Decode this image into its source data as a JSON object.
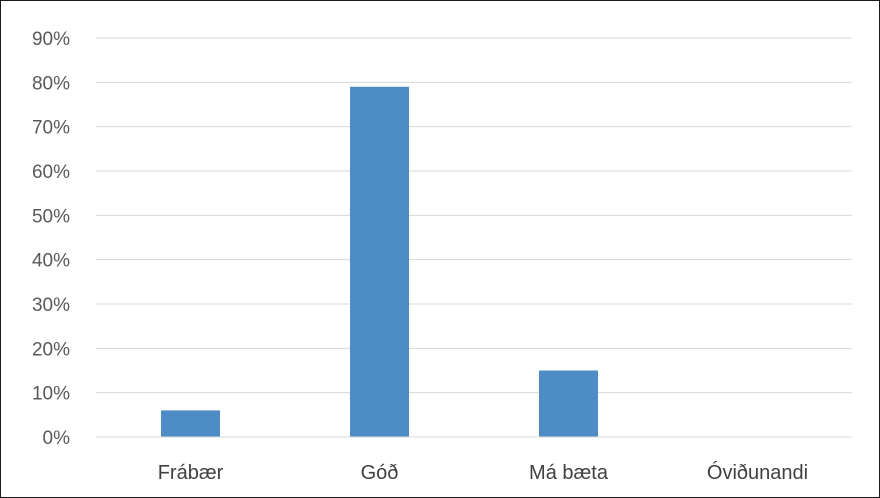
{
  "chart_data": {
    "type": "bar",
    "categories": [
      "Frábær",
      "Góð",
      "Má bæta",
      "Óviðunandi"
    ],
    "values": [
      6,
      79,
      15,
      0
    ],
    "title": "",
    "xlabel": "",
    "ylabel": "",
    "ylim": [
      0,
      90
    ],
    "yticks": [
      0,
      10,
      20,
      30,
      40,
      50,
      60,
      70,
      80,
      90
    ],
    "ytick_format": "percent",
    "grid": true,
    "legend": "none",
    "bar_color": "#4e8cc6",
    "grid_color": "#d9d9d9"
  }
}
